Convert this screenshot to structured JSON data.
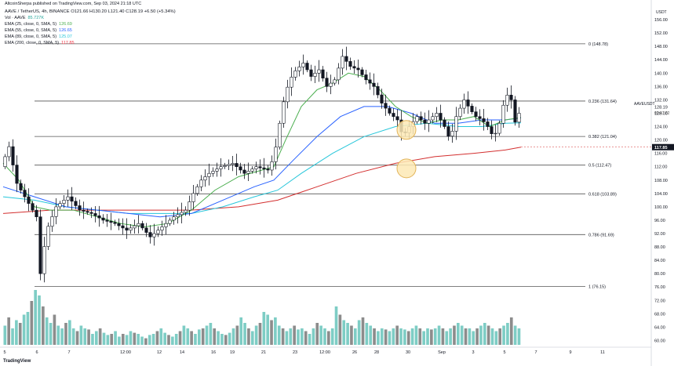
{
  "header": {
    "publisher_line": "AltcoinSherpa published on TradingView.com, Sep 03, 2024 21:18 UTC",
    "symbol_line": "AAVE / TetherUS, 4h, BINANCE  O121.66  H130.20  L121.40  C128.19  +6.50 (+5.34%)"
  },
  "legend": [
    {
      "label": "Vol · AAVE",
      "value": "85.727K",
      "color": "#26a69a"
    },
    {
      "label": "EMA (25, close, 0, SMA, 5)",
      "value": "126.69",
      "color": "#4caf50"
    },
    {
      "label": "EMA (55, close, 0, SMA, 5)",
      "value": "126.65",
      "color": "#2962ff"
    },
    {
      "label": "EMA (89, close, 0, SMA, 5)",
      "value": "125.07",
      "color": "#26c6da"
    },
    {
      "label": "EMA (200, close, 0, SMA, 5)",
      "value": "117.85",
      "color": "#f23645"
    }
  ],
  "watermark": "TradingView",
  "colors": {
    "up": "#ffffff",
    "down": "#131722",
    "fib_line": "#555555",
    "vol_up": "#7ecdc5",
    "vol_down": "#8c8c8c",
    "highlight_fill": "#fde9b5",
    "highlight_stroke": "#e2b45a",
    "ema25": "#4caf50",
    "ema55": "#2962ff",
    "ema89": "#26c6da",
    "ema200": "#d32f2f",
    "price_badge": "#131722"
  },
  "chart_data": {
    "type": "candlestick",
    "title": "AAVE / TetherUS, 4h, BINANCE",
    "y_unit": "USDT",
    "ylim": [
      58,
      160
    ],
    "y_ticks": [
      60,
      64,
      68,
      72,
      76,
      80,
      84,
      88,
      92,
      96,
      100,
      104,
      108,
      112,
      116,
      120,
      124,
      128,
      132,
      136,
      140,
      144,
      148,
      152,
      156
    ],
    "x_tick_labels": [
      "5",
      "6",
      "7",
      "12:00",
      "12",
      "14",
      "16",
      "19",
      "21",
      "23",
      "12:00",
      "26",
      "28",
      "30",
      "Sep",
      "3",
      "5",
      "7",
      "9",
      "11"
    ],
    "last_price": {
      "symbol": "AAVEUSDT",
      "value": "128.19",
      "countdown": "02:41:32"
    },
    "ema200_badge": "117.85",
    "fib_levels": [
      {
        "ratio": "0",
        "price": 148.78
      },
      {
        "ratio": "0.236",
        "price": 131.64
      },
      {
        "ratio": "0.382",
        "price": 121.04
      },
      {
        "ratio": "0.5",
        "price": 112.47
      },
      {
        "ratio": "0.618",
        "price": 103.89
      },
      {
        "ratio": "0.786",
        "price": 91.69
      },
      {
        "ratio": "1",
        "price": 76.15
      }
    ],
    "close_path": [
      [
        0,
        112
      ],
      [
        10,
        118
      ],
      [
        20,
        107
      ],
      [
        35,
        101
      ],
      [
        45,
        97
      ],
      [
        50,
        80
      ],
      [
        58,
        93
      ],
      [
        70,
        100
      ],
      [
        85,
        103
      ],
      [
        100,
        99
      ],
      [
        115,
        98
      ],
      [
        130,
        96
      ],
      [
        145,
        95
      ],
      [
        160,
        93
      ],
      [
        175,
        95
      ],
      [
        190,
        91
      ],
      [
        205,
        94
      ],
      [
        220,
        97
      ],
      [
        235,
        99
      ],
      [
        245,
        104
      ],
      [
        255,
        108
      ],
      [
        265,
        110
      ],
      [
        280,
        112
      ],
      [
        295,
        113
      ],
      [
        310,
        110
      ],
      [
        325,
        112
      ],
      [
        340,
        111
      ],
      [
        348,
        115
      ],
      [
        355,
        125
      ],
      [
        362,
        134
      ],
      [
        372,
        140
      ],
      [
        385,
        143
      ],
      [
        395,
        139
      ],
      [
        405,
        141
      ],
      [
        415,
        136
      ],
      [
        425,
        138
      ],
      [
        435,
        145
      ],
      [
        445,
        142
      ],
      [
        455,
        141
      ],
      [
        465,
        138
      ],
      [
        475,
        136
      ],
      [
        485,
        131
      ],
      [
        495,
        128
      ],
      [
        505,
        126
      ],
      [
        512,
        121
      ],
      [
        520,
        124
      ],
      [
        530,
        127
      ],
      [
        540,
        125
      ],
      [
        555,
        128
      ],
      [
        565,
        124
      ],
      [
        572,
        120
      ],
      [
        580,
        127
      ],
      [
        590,
        132
      ],
      [
        598,
        129
      ],
      [
        605,
        127
      ],
      [
        613,
        126
      ],
      [
        620,
        124
      ],
      [
        627,
        121
      ],
      [
        633,
        123
      ],
      [
        638,
        128
      ],
      [
        643,
        134
      ],
      [
        650,
        132
      ],
      [
        656,
        124
      ],
      [
        660,
        128
      ]
    ],
    "ema25_path": [
      [
        0,
        113
      ],
      [
        20,
        108
      ],
      [
        40,
        100
      ],
      [
        60,
        99
      ],
      [
        90,
        99
      ],
      [
        120,
        97
      ],
      [
        150,
        95
      ],
      [
        180,
        94
      ],
      [
        210,
        95
      ],
      [
        240,
        99
      ],
      [
        270,
        105
      ],
      [
        300,
        109
      ],
      [
        330,
        111
      ],
      [
        345,
        112
      ],
      [
        360,
        120
      ],
      [
        380,
        130
      ],
      [
        400,
        135
      ],
      [
        420,
        137
      ],
      [
        440,
        140
      ],
      [
        460,
        139
      ],
      [
        480,
        135
      ],
      [
        500,
        130
      ],
      [
        520,
        127
      ],
      [
        540,
        125
      ],
      [
        560,
        126
      ],
      [
        580,
        126
      ],
      [
        600,
        127
      ],
      [
        620,
        124
      ],
      [
        640,
        126
      ],
      [
        660,
        126.7
      ]
    ],
    "ema55_path": [
      [
        0,
        106
      ],
      [
        40,
        103
      ],
      [
        80,
        100
      ],
      [
        120,
        99
      ],
      [
        160,
        98
      ],
      [
        200,
        97
      ],
      [
        240,
        98
      ],
      [
        280,
        102
      ],
      [
        320,
        106
      ],
      [
        345,
        108
      ],
      [
        370,
        114
      ],
      [
        400,
        121
      ],
      [
        430,
        127
      ],
      [
        460,
        130
      ],
      [
        490,
        130
      ],
      [
        520,
        128
      ],
      [
        550,
        125
      ],
      [
        580,
        125
      ],
      [
        610,
        126
      ],
      [
        640,
        126
      ],
      [
        660,
        126.6
      ]
    ],
    "ema89_path": [
      [
        0,
        103
      ],
      [
        40,
        102
      ],
      [
        80,
        100
      ],
      [
        120,
        99
      ],
      [
        160,
        98
      ],
      [
        200,
        98
      ],
      [
        240,
        98
      ],
      [
        280,
        100
      ],
      [
        320,
        103
      ],
      [
        350,
        105
      ],
      [
        380,
        110
      ],
      [
        420,
        116
      ],
      [
        460,
        121
      ],
      [
        500,
        124
      ],
      [
        540,
        125
      ],
      [
        580,
        124
      ],
      [
        610,
        124
      ],
      [
        640,
        125
      ],
      [
        660,
        125.1
      ]
    ],
    "ema200_path": [
      [
        0,
        98
      ],
      [
        60,
        99
      ],
      [
        120,
        99
      ],
      [
        180,
        99
      ],
      [
        240,
        99
      ],
      [
        300,
        100
      ],
      [
        350,
        102
      ],
      [
        400,
        106
      ],
      [
        450,
        110
      ],
      [
        500,
        113
      ],
      [
        550,
        115
      ],
      [
        600,
        116
      ],
      [
        640,
        117
      ],
      [
        660,
        117.85
      ]
    ],
    "volume_levels": [
      0.35,
      0.5,
      0.3,
      0.45,
      0.4,
      0.55,
      0.6,
      0.8,
      1.0,
      0.9,
      0.7,
      0.5,
      0.4,
      0.55,
      0.35,
      0.3,
      0.4,
      0.45,
      0.3,
      0.25,
      0.35,
      0.3,
      0.28,
      0.2,
      0.25,
      0.3,
      0.22,
      0.18,
      0.2,
      0.25,
      0.15,
      0.2,
      0.18,
      0.25,
      0.22,
      0.2,
      0.15,
      0.12,
      0.18,
      0.2,
      0.25,
      0.3,
      0.22,
      0.18,
      0.15,
      0.2,
      0.25,
      0.35,
      0.3,
      0.25,
      0.2,
      0.28,
      0.3,
      0.35,
      0.4,
      0.3,
      0.25,
      0.2,
      0.18,
      0.22,
      0.3,
      0.35,
      0.5,
      0.4,
      0.3,
      0.25,
      0.35,
      0.4,
      0.6,
      0.55,
      0.45,
      0.5,
      0.35,
      0.3,
      0.25,
      0.3,
      0.35,
      0.28,
      0.3,
      0.25,
      0.2,
      0.3,
      0.4,
      0.35,
      0.3,
      0.25,
      0.3,
      0.7,
      0.55,
      0.45,
      0.4,
      0.35,
      0.3,
      0.45,
      0.5,
      0.4,
      0.35,
      0.3,
      0.25,
      0.3,
      0.28,
      0.25,
      0.3,
      0.35,
      0.3,
      0.28,
      0.25,
      0.3,
      0.35,
      0.3,
      0.25,
      0.3,
      0.28,
      0.3,
      0.35,
      0.3,
      0.25,
      0.3,
      0.35,
      0.4,
      0.35,
      0.3,
      0.3,
      0.25,
      0.3,
      0.35,
      0.4,
      0.35,
      0.3,
      0.25,
      0.3,
      0.35,
      0.4,
      0.5,
      0.35,
      0.3
    ],
    "highlights": [
      {
        "x_index": 514,
        "price": 123
      },
      {
        "x_index": 514,
        "price": 111.5
      }
    ]
  }
}
